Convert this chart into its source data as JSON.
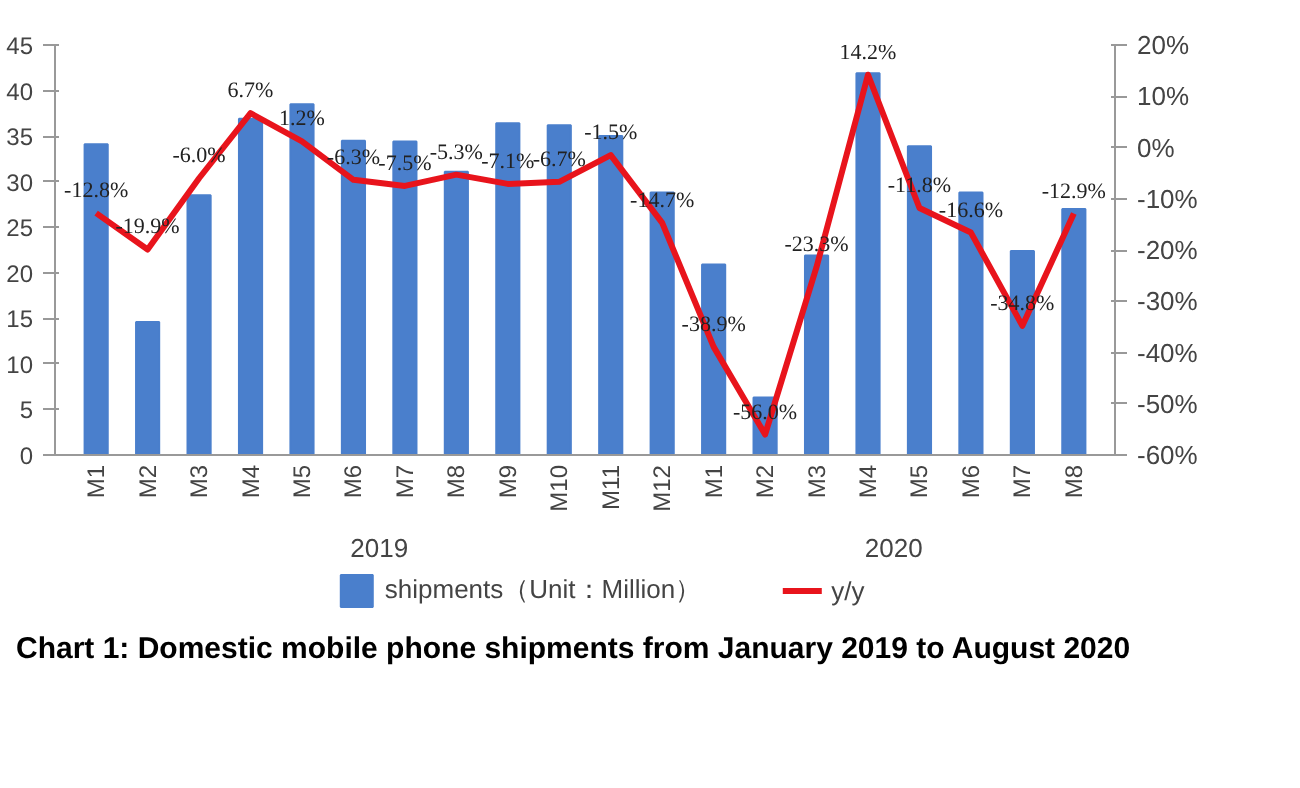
{
  "chart_data": {
    "type": "bar",
    "title": "Chart 1: Domestic mobile phone shipments from January 2019 to August 2020",
    "categories": [
      "M1",
      "M2",
      "M3",
      "M4",
      "M5",
      "M6",
      "M7",
      "M8",
      "M9",
      "M10",
      "M11",
      "M12",
      "M1",
      "M2",
      "M3",
      "M4",
      "M5",
      "M6",
      "M7",
      "M8"
    ],
    "annotations": [
      "2019",
      "2020"
    ],
    "series": [
      {
        "name": "shipments（Unit：Million）",
        "color": "#4a7fcc",
        "values": [
          34.1,
          14.6,
          28.5,
          36.9,
          38.5,
          34.5,
          34.4,
          31.1,
          36.4,
          36.2,
          35.0,
          28.8,
          20.9,
          6.3,
          21.9,
          41.9,
          33.9,
          28.8,
          22.4,
          27.0
        ]
      },
      {
        "name": "y/y",
        "type": "line",
        "axis": "y2",
        "color": "#e8141c",
        "data_labels": true,
        "values": [
          -12.8,
          -19.9,
          -6.0,
          6.7,
          1.2,
          -6.3,
          -7.5,
          -5.3,
          -7.1,
          -6.7,
          -1.5,
          -14.7,
          -38.9,
          -56.0,
          -23.3,
          14.2,
          -11.8,
          -16.6,
          -34.8,
          -12.9
        ],
        "value_labels": [
          "-12.8%",
          "-19.9%",
          "-6.0%",
          "6.7%",
          "1.2%",
          "-6.3%",
          "-7.5%",
          "-5.3%",
          "-7.1%",
          "-6.7%",
          "-1.5%",
          "-14.7%",
          "-38.9%",
          "-56.0%",
          "-23.3%",
          "14.2%",
          "-11.8%",
          "-16.6%",
          "-34.8%",
          "-12.9%"
        ]
      }
    ],
    "ylim": [
      0,
      45
    ],
    "yticks": [
      0,
      5,
      10,
      15,
      20,
      25,
      30,
      35,
      40,
      45
    ],
    "y2lim": [
      -60,
      20
    ],
    "y2ticks": [
      {
        "value": -60,
        "label": "-60%"
      },
      {
        "value": -50,
        "label": "-50%"
      },
      {
        "value": -40,
        "label": "-40%"
      },
      {
        "value": -30,
        "label": "-30%"
      },
      {
        "value": -20,
        "label": "-20%"
      },
      {
        "value": -10,
        "label": "-10%"
      },
      {
        "value": 0,
        "label": "0%"
      },
      {
        "value": 10,
        "label": "10%"
      },
      {
        "value": 20,
        "label": "20%"
      }
    ],
    "grid": false,
    "legend": "bottom"
  }
}
